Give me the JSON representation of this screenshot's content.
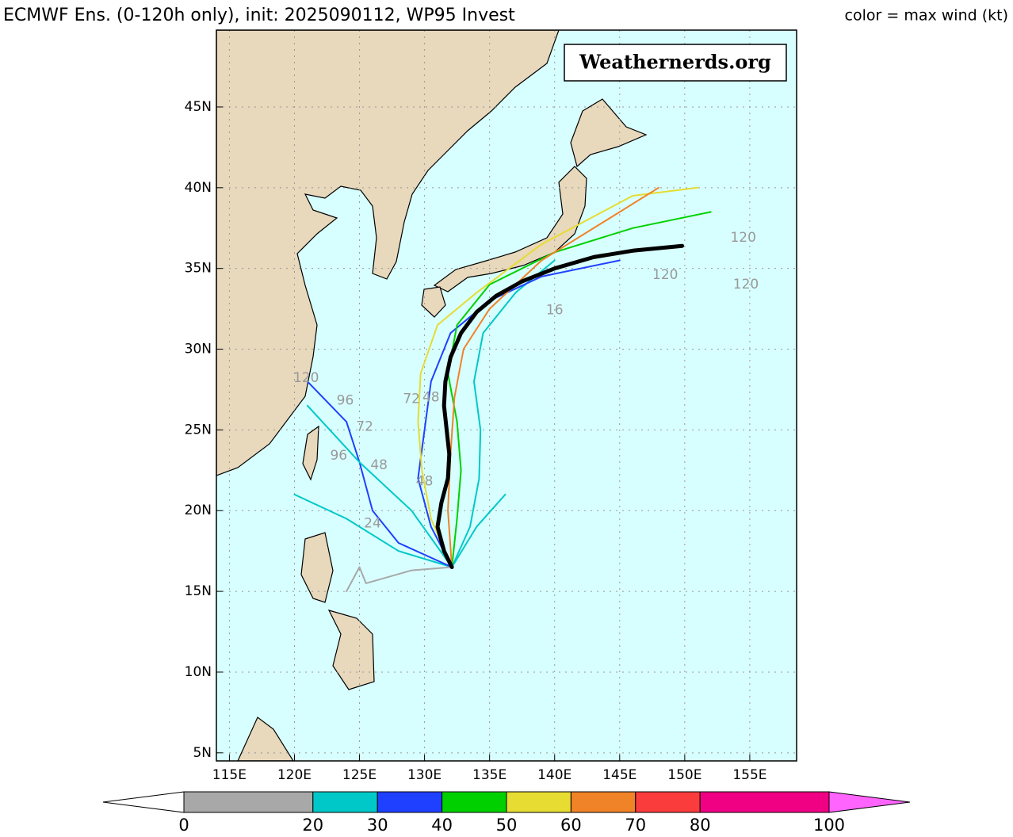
{
  "header": {
    "title": "ECMWF Ens. (0-120h only), init: 2025090112, WP95 Invest",
    "right_label": "color = max wind (kt)"
  },
  "map": {
    "watermark": "Weathernerds.org",
    "lon_range": [
      114.0,
      158.6
    ],
    "lat_range": [
      4.5,
      49.76
    ],
    "lon_ticks": [
      {
        "value": 115,
        "label": "115E"
      },
      {
        "value": 120,
        "label": "120E"
      },
      {
        "value": 125,
        "label": "125E"
      },
      {
        "value": 130,
        "label": "130E"
      },
      {
        "value": 135,
        "label": "135E"
      },
      {
        "value": 140,
        "label": "140E"
      },
      {
        "value": 145,
        "label": "145E"
      },
      {
        "value": 150,
        "label": "150E"
      },
      {
        "value": 155,
        "label": "155E"
      }
    ],
    "lat_ticks": [
      {
        "value": 5,
        "label": "5N"
      },
      {
        "value": 10,
        "label": "10N"
      },
      {
        "value": 15,
        "label": "15N"
      },
      {
        "value": 20,
        "label": "20N"
      },
      {
        "value": 25,
        "label": "25N"
      },
      {
        "value": 30,
        "label": "30N"
      },
      {
        "value": 35,
        "label": "35N"
      },
      {
        "value": 40,
        "label": "40N"
      },
      {
        "value": 45,
        "label": "45N"
      }
    ]
  },
  "colorbar": {
    "bounds": [
      0,
      20,
      30,
      40,
      50,
      60,
      70,
      80,
      100
    ],
    "colors": [
      "#a8a8a8",
      "#00c8c8",
      "#2040ff",
      "#00d000",
      "#e6dc32",
      "#f08228",
      "#fa3c3c",
      "#f00082"
    ],
    "over_color": "#ff64ff"
  },
  "mean_track": {
    "color": "#000000",
    "lon": [
      132.1,
      131.5,
      131.0,
      131.3,
      131.8,
      131.9,
      131.7,
      131.5,
      131.6,
      132.0,
      132.8,
      134.0,
      135.5,
      137.5,
      140.0,
      143.0,
      146.0,
      149.8
    ],
    "lat": [
      16.5,
      17.5,
      19.0,
      20.5,
      22.0,
      23.5,
      25.0,
      26.5,
      28.0,
      29.5,
      31.0,
      32.3,
      33.3,
      34.2,
      35.0,
      35.7,
      36.1,
      36.4
    ]
  },
  "members": [
    {
      "color": "#00c8c8",
      "lon": [
        132.1,
        133.5,
        134.2,
        134.3,
        133.8,
        134.5,
        137,
        140
      ],
      "lat": [
        16.5,
        19,
        22,
        25,
        28,
        31,
        33.5,
        35.5
      ]
    },
    {
      "color": "#2040ff",
      "lon": [
        132.1,
        130.5,
        129.5,
        130,
        130.5,
        132,
        135,
        139,
        145
      ],
      "lat": [
        16.5,
        19,
        22,
        25,
        28,
        31,
        33,
        34.5,
        35.5
      ]
    },
    {
      "color": "#00d000",
      "lon": [
        132.1,
        132.5,
        132.8,
        132.5,
        131.8,
        132.5,
        135,
        140,
        146,
        152
      ],
      "lat": [
        16.5,
        19.5,
        22.5,
        25.5,
        28.5,
        31.5,
        34,
        36,
        37.5,
        38.5
      ]
    },
    {
      "color": "#e6dc32",
      "lon": [
        132.1,
        130.5,
        129.8,
        129.5,
        129.7,
        131,
        134,
        139,
        146,
        151
      ],
      "lat": [
        16.5,
        19.5,
        22.5,
        25.5,
        28.5,
        31.5,
        33.5,
        36.5,
        39.5,
        40
      ]
    },
    {
      "color": "#f08228",
      "lon": [
        132.1,
        131.8,
        132,
        132.3,
        133,
        135,
        139,
        144,
        148
      ],
      "lat": [
        16.5,
        20,
        23.5,
        27,
        30,
        32.5,
        35.5,
        38,
        40
      ]
    },
    {
      "color": "#00c8c8",
      "lon": [
        132.1,
        128,
        124,
        120
      ],
      "lat": [
        16.5,
        17.5,
        19.5,
        21
      ]
    },
    {
      "color": "#2040ff",
      "lon": [
        132.1,
        128,
        126,
        125,
        124,
        121
      ],
      "lat": [
        16.5,
        18,
        20,
        23,
        25.5,
        28
      ]
    },
    {
      "color": "#00c8c8",
      "lon": [
        132.1,
        129,
        125,
        121
      ],
      "lat": [
        16.5,
        20,
        23,
        26.5
      ]
    },
    {
      "color": "#a8a8a8",
      "lon": [
        132.1,
        129,
        125.5,
        125,
        124
      ],
      "lat": [
        16.5,
        16.3,
        15.5,
        16.5,
        15
      ]
    },
    {
      "color": "#00c8c8",
      "lon": [
        132.1,
        134,
        136.2
      ],
      "lat": [
        16.5,
        19,
        21
      ]
    }
  ],
  "hour_labels": [
    {
      "text": "120",
      "lon": 148.5,
      "lat": 34.6
    },
    {
      "text": "120",
      "lon": 154.7,
      "lat": 34.0
    },
    {
      "text": "120",
      "lon": 154.5,
      "lat": 36.9
    },
    {
      "text": "120",
      "lon": 120.9,
      "lat": 28.2
    },
    {
      "text": "96",
      "lon": 123.9,
      "lat": 26.8
    },
    {
      "text": "96",
      "lon": 123.4,
      "lat": 23.4
    },
    {
      "text": "72",
      "lon": 125.4,
      "lat": 25.2
    },
    {
      "text": "72",
      "lon": 129.0,
      "lat": 26.9
    },
    {
      "text": "48",
      "lon": 130.5,
      "lat": 27.0
    },
    {
      "text": "48",
      "lon": 126.5,
      "lat": 22.8
    },
    {
      "text": "48",
      "lon": 130.0,
      "lat": 21.8
    },
    {
      "text": "24",
      "lon": 126.0,
      "lat": 19.2
    },
    {
      "text": "16",
      "lon": 140.0,
      "lat": 32.4
    }
  ]
}
